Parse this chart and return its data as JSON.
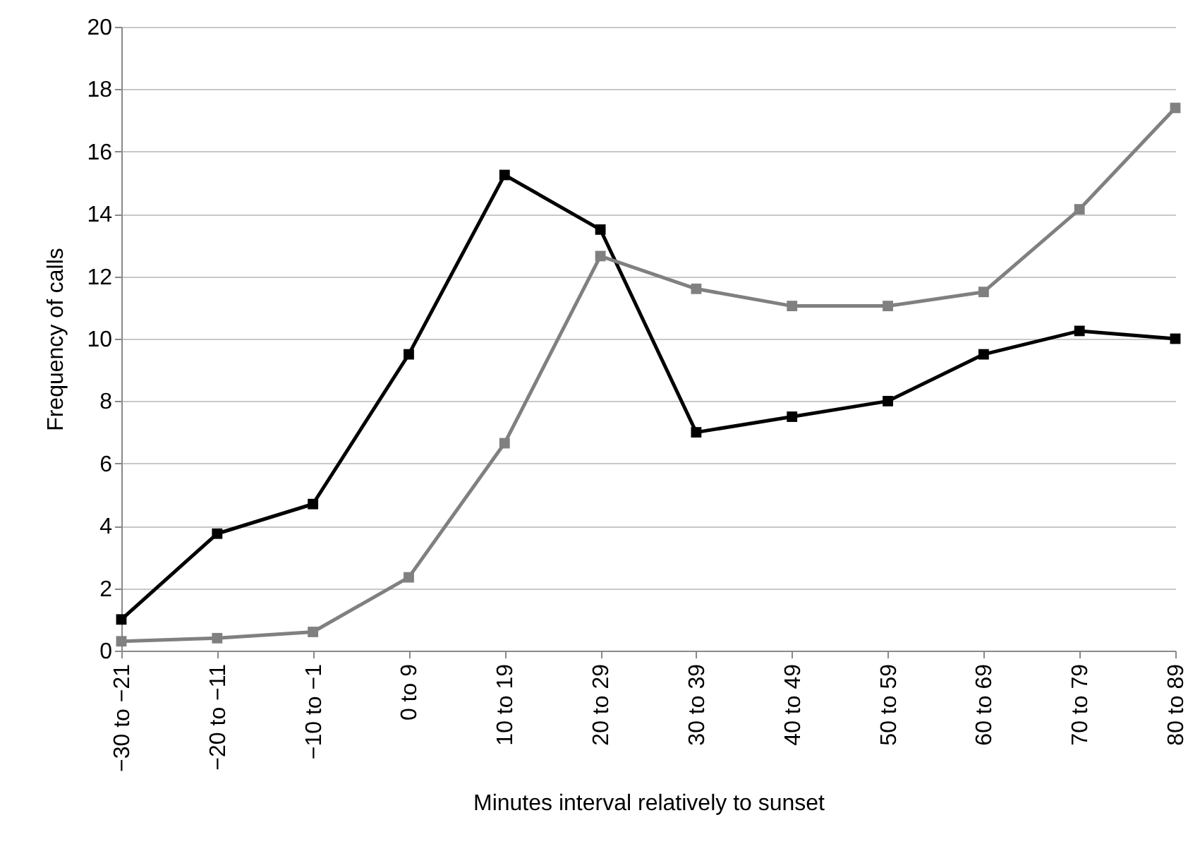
{
  "chart_data": {
    "type": "line",
    "xlabel": "Minutes interval relatively to sunset",
    "ylabel": "Frequency of calls",
    "categories": [
      "−30 to −21",
      "−20 to −11",
      "−10 to −1",
      "0 to 9",
      "10 to 19",
      "20 to 29",
      "30 to 39",
      "40 to 49",
      "50 to 59",
      "60 to 69",
      "70 to 79",
      "80 to 89"
    ],
    "series": [
      {
        "color": "#000000",
        "values": [
          1.0,
          3.75,
          4.7,
          9.5,
          15.25,
          13.5,
          7.0,
          7.5,
          8.0,
          9.5,
          10.25,
          10.0
        ]
      },
      {
        "color": "#808080",
        "values": [
          0.3,
          0.4,
          0.6,
          2.35,
          6.65,
          12.65,
          11.6,
          11.05,
          11.05,
          11.5,
          14.15,
          17.4
        ]
      }
    ],
    "ylim": [
      0,
      20
    ],
    "yticks": [
      0,
      2,
      4,
      6,
      8,
      10,
      12,
      14,
      16,
      18,
      20
    ],
    "grid": "y",
    "marker": "square",
    "line_style": "solid"
  }
}
